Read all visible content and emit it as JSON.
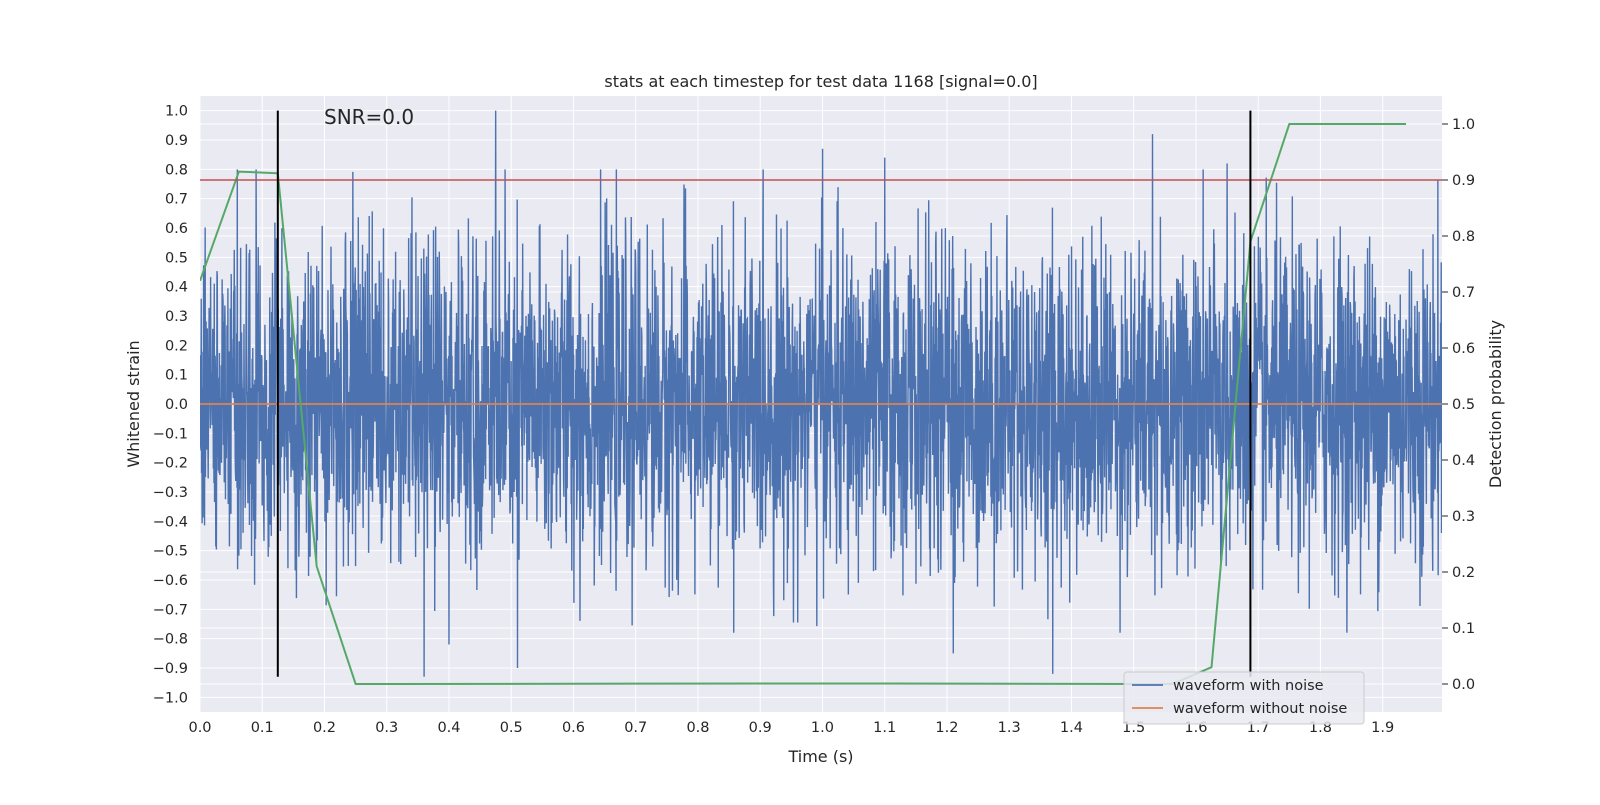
{
  "chart_data": {
    "type": "line",
    "title": "stats at each timestep for test data 1168 [signal=0.0]",
    "annotation": "SNR=0.0",
    "xlabel": "Time (s)",
    "ylabel_left": "Whitened strain",
    "ylabel_right": "Detection probability",
    "xlim": [
      0.0,
      1.9953
    ],
    "ylim_left": [
      -1.05,
      1.05
    ],
    "ylim_right": [
      -0.05,
      1.05
    ],
    "grid": true,
    "background": "#eaeaf2",
    "x_ticks": [
      "0.0",
      "0.1",
      "0.2",
      "0.3",
      "0.4",
      "0.5",
      "0.6",
      "0.7",
      "0.8",
      "0.9",
      "1.0",
      "1.1",
      "1.2",
      "1.3",
      "1.4",
      "1.5",
      "1.6",
      "1.7",
      "1.8",
      "1.9"
    ],
    "y_left_ticks": [
      "1.0",
      "0.9",
      "0.8",
      "0.7",
      "0.6",
      "0.5",
      "0.4",
      "0.3",
      "0.2",
      "0.1",
      "0.0",
      "−0.1",
      "−0.2",
      "−0.3",
      "−0.4",
      "−0.5",
      "−0.6",
      "−0.7",
      "−0.8",
      "−0.9",
      "−1.0"
    ],
    "y_right_ticks": [
      "1.0",
      "0.9",
      "0.8",
      "0.7",
      "0.6",
      "0.5",
      "0.4",
      "0.3",
      "0.2",
      "0.1",
      "0.0"
    ],
    "legend": {
      "position": "lower-right",
      "entries": [
        "waveform with noise",
        "waveform without noise"
      ]
    },
    "series": [
      {
        "name": "waveform with noise",
        "color": "#4c72b0",
        "axis": "left",
        "kind": "noise",
        "x_range": [
          0.0,
          1.995
        ],
        "approx_amplitude_range": [
          -0.93,
          1.0
        ],
        "notable_peaks": [
          {
            "x": 0.475,
            "y": 1.0
          },
          {
            "x": 1.0,
            "y": 0.87
          },
          {
            "x": 1.1,
            "y": 0.84
          },
          {
            "x": 1.53,
            "y": 0.92
          },
          {
            "x": 1.65,
            "y": 0.82
          },
          {
            "x": 0.06,
            "y": 0.8
          },
          {
            "x": 0.09,
            "y": 0.8
          },
          {
            "x": 0.36,
            "y": -0.93
          },
          {
            "x": 1.37,
            "y": -0.92
          },
          {
            "x": 1.21,
            "y": -0.85
          },
          {
            "x": 0.51,
            "y": -0.9
          },
          {
            "x": 0.4,
            "y": -0.82
          }
        ]
      },
      {
        "name": "waveform without noise",
        "color": "#dd8452",
        "axis": "left",
        "x": [
          0.0,
          1.995
        ],
        "y": [
          0.0,
          0.0
        ]
      },
      {
        "color": "#55a868",
        "axis": "right",
        "x": [
          0.0,
          0.0625,
          0.125,
          0.1875,
          0.25,
          0.3125,
          1.0,
          1.5625,
          1.625,
          1.6875,
          1.75,
          1.9375
        ],
        "y": [
          0.72,
          0.915,
          0.912,
          0.21,
          0.0,
          0.0,
          0.001,
          0.0,
          0.03,
          0.79,
          1.0,
          1.0
        ]
      }
    ],
    "reference_lines": [
      {
        "orientation": "horizontal",
        "axis": "right",
        "value": 0.9,
        "color": "#c44e52"
      },
      {
        "orientation": "vertical",
        "x": 0.125,
        "y_range": [
          -0.93,
          1.0
        ],
        "color": "#000000"
      },
      {
        "orientation": "vertical",
        "x": 1.6875,
        "y_range": [
          -0.93,
          1.0
        ],
        "color": "#000000"
      }
    ]
  }
}
